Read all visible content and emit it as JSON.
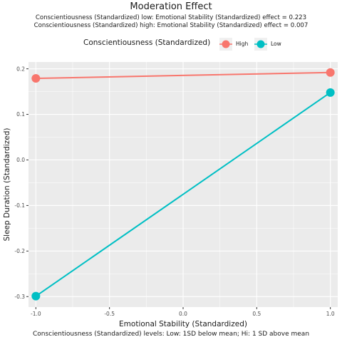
{
  "chart_data": {
    "type": "line",
    "title": "Moderation Effect",
    "subtitle_lines": [
      "Conscientiousness (Standardized) low: Emotional Stability (Standardized) effect = 0.223",
      "Conscientiousness (Standardized) high: Emotional Stability (Standardized) effect = 0.007"
    ],
    "xlabel": "Emotional Stability (Standardized)",
    "ylabel": "Sleep Duration (Standardized)",
    "caption": "Conscientiousness (Standardized) levels: Low: 1SD below mean; Hi: 1 SD above mean",
    "legend": {
      "title": "Conscientiousness (Standardized)",
      "placement": "top"
    },
    "xlim": [
      -1.05,
      1.05
    ],
    "ylim": [
      -0.323,
      0.215
    ],
    "x_ticks": [
      -1.0,
      -0.5,
      0.0,
      0.5,
      1.0
    ],
    "x_tick_labels": [
      "-1.0",
      "-0.5",
      "0.0",
      "0.5",
      "1.0"
    ],
    "y_ticks": [
      -0.3,
      -0.2,
      -0.1,
      0.0,
      0.1,
      0.2
    ],
    "y_tick_labels": [
      "-0.3",
      "-0.2",
      "-0.1",
      "0.0",
      "0.1",
      "0.2"
    ],
    "grid": true,
    "background": "#ebebeb",
    "series": [
      {
        "name": "High",
        "color": "#F8766D",
        "x": [
          -1.0,
          1.0
        ],
        "y": [
          0.179,
          0.192
        ]
      },
      {
        "name": "Low",
        "color": "#00BFC4",
        "x": [
          -1.0,
          1.0
        ],
        "y": [
          -0.299,
          0.148
        ]
      }
    ]
  }
}
